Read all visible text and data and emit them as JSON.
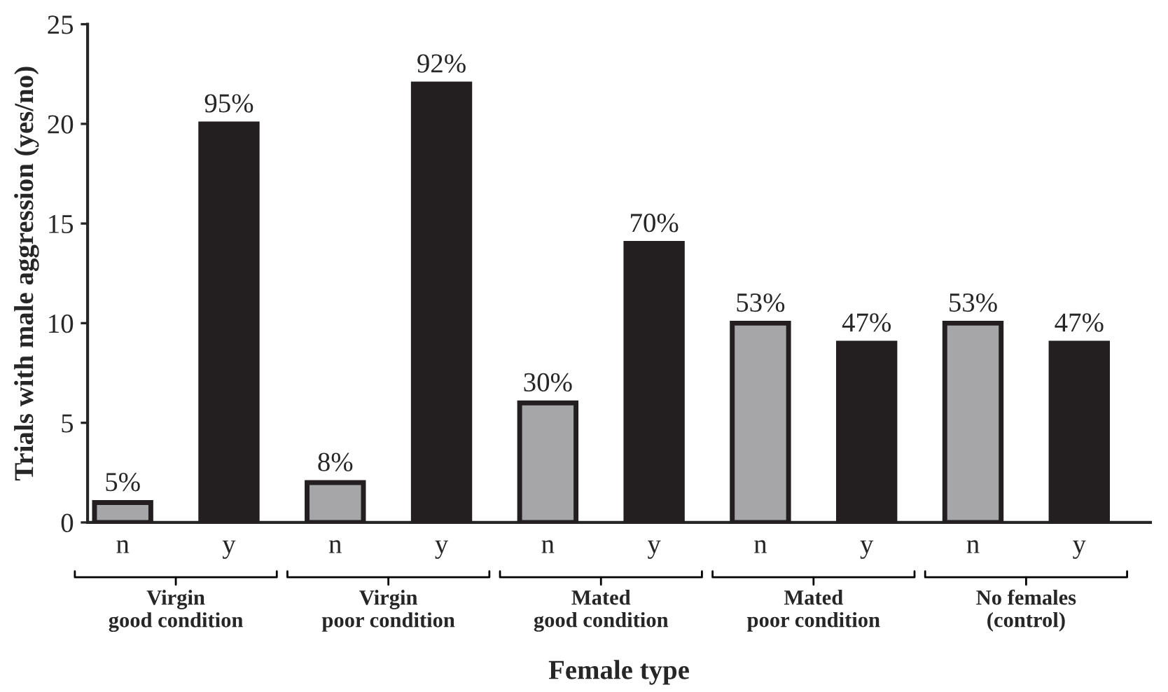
{
  "chart_data": {
    "type": "bar",
    "xlabel": "Female type",
    "ylabel": "Trials with male aggression (yes/no)",
    "categories": [
      "n",
      "y",
      "n",
      "y",
      "n",
      "y",
      "n",
      "y",
      "n",
      "y"
    ],
    "values": [
      1,
      20,
      2,
      22,
      6,
      14,
      10,
      9,
      10,
      9
    ],
    "colors": [
      "#a6a6a8",
      "#231f20",
      "#a6a6a8",
      "#231f20",
      "#a6a6a8",
      "#231f20",
      "#a6a6a8",
      "#231f20",
      "#a6a6a8",
      "#231f20"
    ],
    "ylim": [
      0,
      25
    ],
    "yticks": [
      0,
      5,
      10,
      15,
      20,
      25
    ],
    "grid": false,
    "legend": false,
    "annotations": [
      "Virgin\ngood condition",
      "Virgin\npoor condition",
      "Mated\ngood condition",
      "Mated\npoor condition",
      "No females\n(control)",
      {
        "text": "5%",
        "y": 1
      },
      {
        "text": "95%",
        "y": 20
      },
      {
        "text": "8%",
        "y": 2
      },
      {
        "text": "92%",
        "y": 22
      },
      {
        "text": "30%",
        "y": 6
      },
      {
        "text": "70%",
        "y": 14
      },
      {
        "text": "53%",
        "y": 10
      },
      {
        "text": "47%",
        "y": 9
      },
      {
        "text": "53%",
        "y": 10
      },
      {
        "text": "47%",
        "y": 9
      }
    ]
  }
}
